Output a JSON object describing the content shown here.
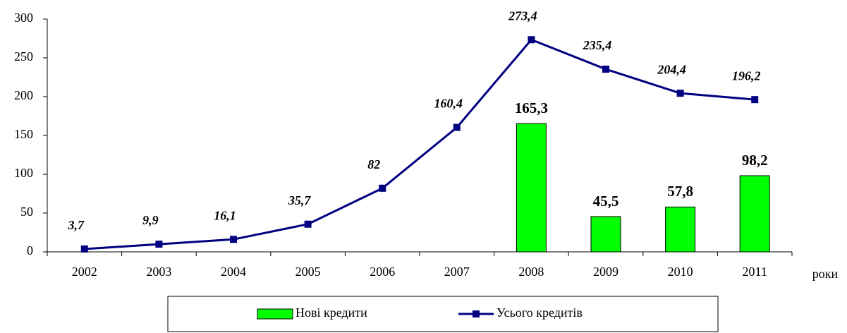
{
  "chart_data": {
    "type": "bar_line",
    "x_label": "роки",
    "categories": [
      "2002",
      "2003",
      "2004",
      "2005",
      "2006",
      "2007",
      "2008",
      "2009",
      "2010",
      "2011"
    ],
    "series": [
      {
        "name": "Нові кредити",
        "type": "bar",
        "color": "#00ff00",
        "values": [
          null,
          null,
          null,
          null,
          null,
          null,
          165.3,
          45.5,
          57.8,
          98.2
        ],
        "value_labels": [
          null,
          null,
          null,
          null,
          null,
          null,
          "165,3",
          "45,5",
          "57,8",
          "98,2"
        ]
      },
      {
        "name": "Усього кредитів",
        "type": "line",
        "color": "#000080",
        "values": [
          3.7,
          9.9,
          16.1,
          35.7,
          82,
          160.4,
          273.4,
          235.4,
          204.4,
          196.2
        ],
        "value_labels": [
          "3,7",
          "9,9",
          "16,1",
          "35,7",
          "82",
          "160,4",
          "273,4",
          "235,4",
          "204,4",
          "196,2"
        ]
      }
    ],
    "ylim": [
      0,
      300
    ],
    "yticks": [
      0,
      50,
      100,
      150,
      200,
      250,
      300
    ],
    "grid": false,
    "legend": "bottom"
  }
}
